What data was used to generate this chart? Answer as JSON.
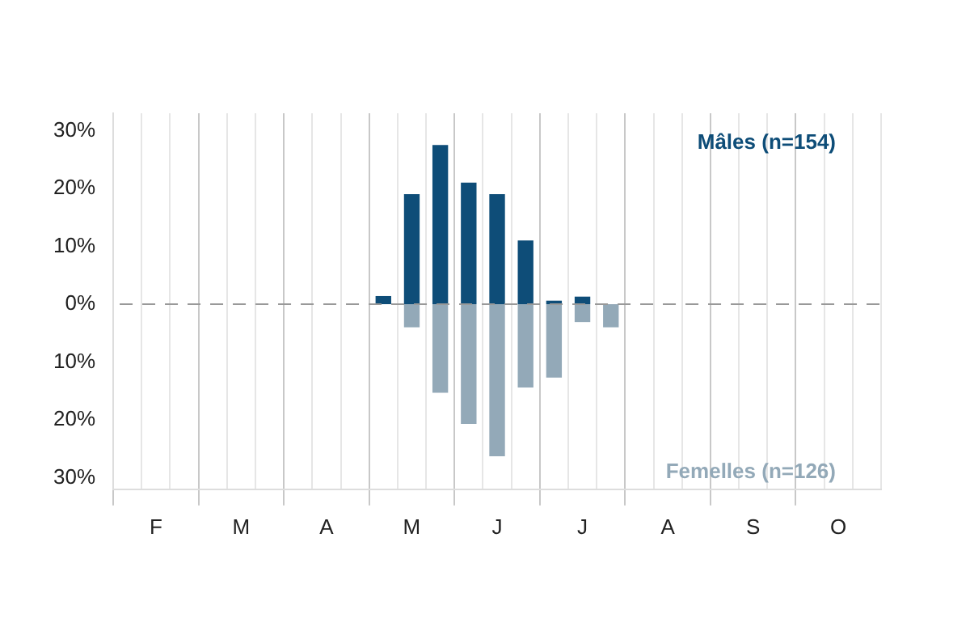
{
  "chart_data": {
    "type": "bar",
    "stacked": true,
    "categories": [
      null,
      "F",
      null,
      null,
      "M",
      null,
      null,
      "A",
      null,
      null,
      "M",
      null,
      null,
      "J",
      null,
      null,
      "J",
      null,
      null,
      "A",
      null,
      null,
      "S",
      null,
      null,
      "O",
      null
    ],
    "series": [
      {
        "name": "Mâles (n=154)",
        "color": "#0e4d78",
        "values": [
          null,
          null,
          null,
          null,
          null,
          null,
          null,
          null,
          null,
          1.4,
          19,
          27.5,
          21,
          19,
          11,
          0.6,
          1.3,
          null,
          null,
          null,
          null,
          null,
          null,
          null,
          null,
          null,
          null
        ]
      },
      {
        "name": "Femelles (n=126)",
        "color": "#93a9b8",
        "values": [
          null,
          null,
          null,
          null,
          null,
          null,
          null,
          null,
          null,
          null,
          -4,
          -15.3,
          -20.7,
          -26.3,
          -14.4,
          -12.7,
          -3.1,
          -4,
          null,
          null,
          null,
          null,
          null,
          null,
          null,
          null,
          null
        ]
      }
    ],
    "ylim": [
      -32,
      33
    ],
    "yticks": [
      {
        "value": -30,
        "label": "30%"
      },
      {
        "value": -20,
        "label": "20%"
      },
      {
        "value": -10,
        "label": "10%"
      },
      {
        "value": 0,
        "label": "0%"
      },
      {
        "value": 10,
        "label": "10%"
      },
      {
        "value": 20,
        "label": "20%"
      },
      {
        "value": 30,
        "label": "30%"
      }
    ],
    "ref_lines": [
      {
        "axis": "y",
        "value": 0,
        "color": "#999999",
        "line_style": "dashed"
      }
    ],
    "grid": "x",
    "legend": false
  }
}
